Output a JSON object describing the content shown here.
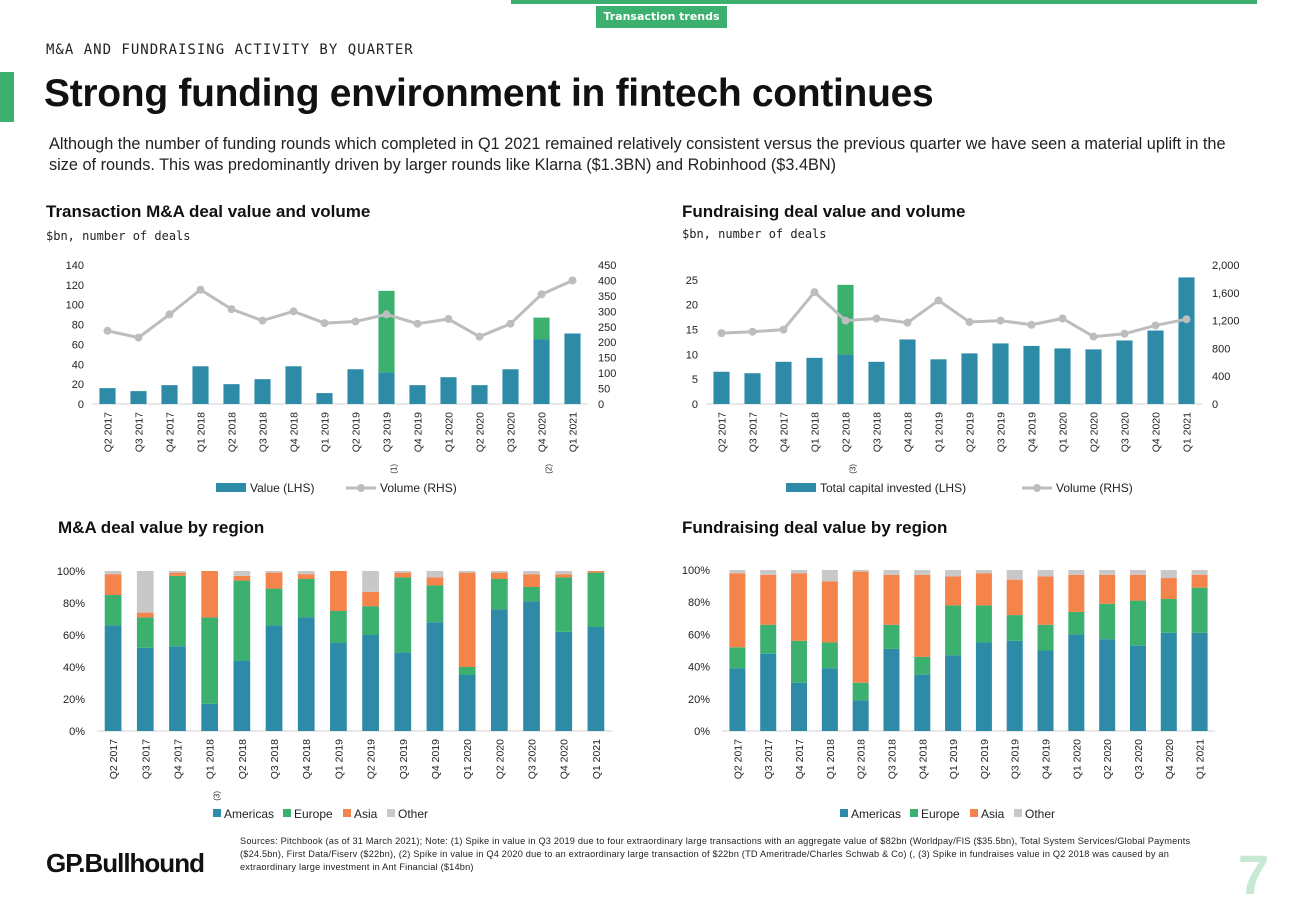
{
  "header": {
    "tag": "Transaction trends"
  },
  "kicker": "M&A AND FUNDRAISING ACTIVITY BY QUARTER",
  "title": "Strong funding environment in fintech continues",
  "lead": "Although the number of funding rounds which completed in Q1 2021 remained relatively consistent versus the previous quarter we have seen a material uplift in the size of rounds. This was predominantly driven by larger rounds like Klarna ($1.3BN) and Robinhood ($3.4BN)",
  "colors": {
    "teal": "#2e8ba8",
    "green": "#3bb06f",
    "orange": "#f5844c",
    "gray": "#c8c8c8",
    "line": "#bdbdbd"
  },
  "charts": {
    "ma": {
      "title": "Transaction M&A deal value and volume",
      "subtitle": "$bn, number of deals"
    },
    "fr": {
      "title": "Fundraising deal value and volume",
      "subtitle": "$bn, number of deals"
    },
    "ma_region": {
      "title": "M&A deal value by region"
    },
    "fr_region": {
      "title": "Fundraising deal value by region"
    }
  },
  "chart_data": [
    {
      "type": "bar",
      "title": "Transaction M&A deal value and volume",
      "subtitle": "$bn, number of deals",
      "categories": [
        "Q2 2017",
        "Q3 2017",
        "Q4 2017",
        "Q1 2018",
        "Q2 2018",
        "Q3 2018",
        "Q4 2018",
        "Q1 2019",
        "Q2 2019",
        "Q3 2019",
        "Q4 2019",
        "Q1 2020",
        "Q2 2020",
        "Q3 2020",
        "Q4 2020",
        "Q1 2021"
      ],
      "category_notes": {
        "Q3 2019": "(1)",
        "Q4 2020": "(2)"
      },
      "series": [
        {
          "name": "Value (LHS)",
          "kind": "bar",
          "axis": "left",
          "values": [
            16,
            13,
            19,
            38,
            20,
            25,
            38,
            11,
            35,
            32,
            19,
            27,
            19,
            35,
            65,
            71
          ]
        },
        {
          "name": "",
          "kind": "bar",
          "axis": "left",
          "color": "#3bb06f",
          "values": [
            0,
            0,
            0,
            0,
            0,
            0,
            0,
            0,
            0,
            82,
            0,
            0,
            0,
            0,
            22,
            0
          ]
        },
        {
          "name": "Volume (RHS)",
          "kind": "line",
          "axis": "right",
          "values": [
            237,
            215,
            290,
            370,
            307,
            270,
            300,
            262,
            267,
            290,
            260,
            275,
            218,
            260,
            355,
            400
          ]
        }
      ],
      "ylim_left": [
        0,
        140
      ],
      "yticks_left": [
        "0",
        "20",
        "40",
        "60",
        "80",
        "100",
        "120",
        "140"
      ],
      "ylim_right": [
        0,
        450
      ],
      "yticks_right": [
        "0",
        "50",
        "100",
        "150",
        "200",
        "250",
        "300",
        "350",
        "400",
        "450"
      ],
      "legend": [
        "Value (LHS)",
        "Volume (RHS)"
      ]
    },
    {
      "type": "bar",
      "title": "Fundraising deal value and volume",
      "subtitle": "$bn, number of deals",
      "categories": [
        "Q2 2017",
        "Q3 2017",
        "Q4 2017",
        "Q1 2018",
        "Q2 2018",
        "Q3 2018",
        "Q4 2018",
        "Q1 2019",
        "Q2 2019",
        "Q3 2019",
        "Q4 2019",
        "Q1 2020",
        "Q2 2020",
        "Q3 2020",
        "Q4 2020",
        "Q1 2021"
      ],
      "category_notes": {
        "Q2 2018": "(3)"
      },
      "series": [
        {
          "name": "Total capital invested (LHS)",
          "kind": "bar",
          "axis": "left",
          "values": [
            6.5,
            6.2,
            8.5,
            9.3,
            10,
            8.5,
            13,
            9,
            10.2,
            12.2,
            11.7,
            11.2,
            11,
            12.8,
            14.8,
            25.5
          ]
        },
        {
          "name": "",
          "kind": "bar",
          "axis": "left",
          "color": "#3bb06f",
          "values": [
            0,
            0,
            0,
            0,
            14,
            0,
            0,
            0,
            0,
            0,
            0,
            0,
            0,
            0,
            0,
            0
          ]
        },
        {
          "name": "Volume (RHS)",
          "kind": "line",
          "axis": "right",
          "values": [
            1020,
            1040,
            1070,
            1610,
            1200,
            1230,
            1170,
            1490,
            1180,
            1200,
            1140,
            1230,
            970,
            1010,
            1130,
            1220
          ]
        }
      ],
      "ylim_left": [
        0,
        28
      ],
      "yticks_left": [
        "0",
        "5",
        "10",
        "15",
        "20",
        "25"
      ],
      "ylim_right": [
        0,
        2000
      ],
      "yticks_right": [
        "0",
        "400",
        "800",
        "1,200",
        "1,600",
        "2,000"
      ],
      "legend": [
        "Total capital invested (LHS)",
        "Volume (RHS)"
      ]
    },
    {
      "type": "bar",
      "stacked": true,
      "title": "M&A deal value by region",
      "categories": [
        "Q2 2017",
        "Q3 2017",
        "Q4 2017",
        "Q1 2018",
        "Q2 2018",
        "Q3 2018",
        "Q4 2018",
        "Q1 2019",
        "Q2 2019",
        "Q3 2019",
        "Q4 2019",
        "Q1 2020",
        "Q2 2020",
        "Q3 2020",
        "Q4 2020",
        "Q1 2021"
      ],
      "category_notes": {
        "Q1 2018": "(3)"
      },
      "series": [
        {
          "name": "Americas",
          "values": [
            66,
            52,
            53,
            17,
            44,
            66,
            71,
            55,
            60,
            49,
            68,
            35,
            76,
            81,
            62,
            65
          ]
        },
        {
          "name": "Europe",
          "values": [
            19,
            19,
            44,
            54,
            50,
            23,
            24,
            20,
            18,
            47,
            23,
            5,
            19,
            9,
            34,
            34
          ]
        },
        {
          "name": "Asia",
          "values": [
            13,
            3,
            2,
            29,
            3,
            10,
            3,
            25,
            9,
            3,
            5,
            59,
            4,
            8,
            2,
            1
          ]
        },
        {
          "name": "Other",
          "values": [
            2,
            26,
            1,
            0,
            3,
            1,
            2,
            0,
            13,
            1,
            4,
            1,
            1,
            2,
            2,
            0
          ]
        }
      ],
      "ylim": [
        0,
        100
      ],
      "yticks": [
        "0%",
        "20%",
        "40%",
        "60%",
        "80%",
        "100%"
      ],
      "legend": [
        "Americas",
        "Europe",
        "Asia",
        "Other"
      ]
    },
    {
      "type": "bar",
      "stacked": true,
      "title": "Fundraising deal value by region",
      "categories": [
        "Q2 2017",
        "Q3 2017",
        "Q4 2017",
        "Q1 2018",
        "Q2 2018",
        "Q3 2018",
        "Q4 2018",
        "Q1 2019",
        "Q2 2019",
        "Q3 2019",
        "Q4 2019",
        "Q1 2020",
        "Q2 2020",
        "Q3 2020",
        "Q4 2020",
        "Q1 2021"
      ],
      "series": [
        {
          "name": "Americas",
          "values": [
            39,
            48,
            30,
            39,
            19,
            51,
            35,
            47,
            55,
            56,
            50,
            60,
            57,
            53,
            61,
            61
          ]
        },
        {
          "name": "Europe",
          "values": [
            13,
            18,
            26,
            16,
            11,
            15,
            11,
            31,
            23,
            16,
            16,
            14,
            22,
            28,
            21,
            28
          ]
        },
        {
          "name": "Asia",
          "values": [
            46,
            31,
            42,
            38,
            69,
            31,
            51,
            18,
            20,
            22,
            30,
            23,
            18,
            16,
            13,
            8
          ]
        },
        {
          "name": "Other",
          "values": [
            2,
            3,
            2,
            7,
            1,
            3,
            3,
            4,
            2,
            6,
            4,
            3,
            3,
            3,
            5,
            3
          ]
        }
      ],
      "ylim": [
        0,
        100
      ],
      "yticks": [
        "0%",
        "20%",
        "40%",
        "60%",
        "80%",
        "100%"
      ],
      "legend": [
        "Americas",
        "Europe",
        "Asia",
        "Other"
      ]
    }
  ],
  "footer": {
    "logo": "GP.Bullhound",
    "sources": "Sources: Pitchbook (as of 31 March 2021); Note: (1) Spike in value in Q3 2019 due to four extraordinary large transactions with an aggregate value of $82bn (Worldpay/FIS ($35.5bn), Total System Services/Global Payments ($24.5bn), First Data/Fiserv ($22bn), (2) Spike in value in Q4 2020 due to an extraordinary large transaction of $22bn (TD Ameritrade/Charles Schwab & Co) (, (3) Spike in fundraises value in Q2 2018 was caused by an extraordinary large investment in Ant Financial ($14bn)",
    "page": "7"
  }
}
